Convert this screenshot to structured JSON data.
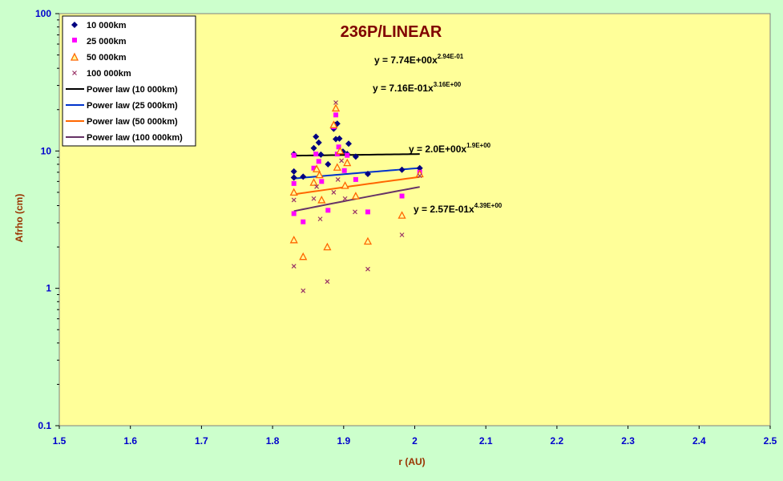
{
  "chart_data": {
    "type": "scatter",
    "title": "236P/LINEAR",
    "xlabel": "r (AU)",
    "ylabel": "Afrho (cm)",
    "xlim": [
      1.5,
      2.5
    ],
    "ylim": [
      0.1,
      100
    ],
    "yscale": "log",
    "x_ticks": [
      "1.5",
      "1.6",
      "1.7",
      "1.8",
      "1.9",
      "2",
      "2.1",
      "2.2",
      "2.3",
      "2.4",
      "2.5"
    ],
    "y_ticks": [
      "0.1",
      "1",
      "10",
      "100"
    ],
    "plot_background": "#ffff99",
    "chart_background": "#ccffcc",
    "grid": false,
    "legend_position": "top-left",
    "series": [
      {
        "name": "10 000km",
        "marker": "diamond",
        "color": "#000080",
        "points": [
          [
            1.83,
            9.5
          ],
          [
            1.83,
            7.1
          ],
          [
            1.83,
            6.4
          ],
          [
            1.843,
            6.5
          ],
          [
            1.858,
            10.5
          ],
          [
            1.861,
            12.7
          ],
          [
            1.865,
            11.5
          ],
          [
            1.868,
            9.4
          ],
          [
            1.878,
            8.0
          ],
          [
            1.886,
            14.5
          ],
          [
            1.888,
            15.5
          ],
          [
            1.889,
            12.2
          ],
          [
            1.891,
            15.8
          ],
          [
            1.894,
            12.3
          ],
          [
            1.899,
            9.9
          ],
          [
            1.905,
            9.5
          ],
          [
            1.907,
            11.3
          ],
          [
            1.917,
            9.1
          ],
          [
            1.934,
            6.8
          ],
          [
            1.982,
            7.3
          ],
          [
            2.007,
            7.5
          ]
        ]
      },
      {
        "name": "25 000km",
        "marker": "square",
        "color": "#ff00ff",
        "points": [
          [
            1.83,
            9.3
          ],
          [
            1.83,
            5.8
          ],
          [
            1.83,
            3.5
          ],
          [
            1.843,
            3.05
          ],
          [
            1.858,
            7.5
          ],
          [
            1.861,
            9.5
          ],
          [
            1.865,
            8.4
          ],
          [
            1.869,
            6.0
          ],
          [
            1.878,
            3.7
          ],
          [
            1.886,
            15.0
          ],
          [
            1.889,
            18.3
          ],
          [
            1.891,
            9.5
          ],
          [
            1.893,
            10.7
          ],
          [
            1.901,
            7.2
          ],
          [
            1.905,
            9.3
          ],
          [
            1.917,
            6.2
          ],
          [
            1.934,
            3.6
          ],
          [
            1.982,
            4.7
          ],
          [
            2.007,
            7.0
          ]
        ]
      },
      {
        "name": "50 000km",
        "marker": "triangle",
        "color": "#ff6600",
        "points": [
          [
            1.83,
            5.0
          ],
          [
            1.83,
            2.25
          ],
          [
            1.843,
            1.7
          ],
          [
            1.858,
            5.9
          ],
          [
            1.862,
            7.4
          ],
          [
            1.866,
            6.7
          ],
          [
            1.869,
            4.4
          ],
          [
            1.877,
            2.0
          ],
          [
            1.886,
            15.5
          ],
          [
            1.889,
            20.5
          ],
          [
            1.891,
            7.6
          ],
          [
            1.895,
            10.0
          ],
          [
            1.902,
            5.6
          ],
          [
            1.905,
            8.2
          ],
          [
            1.917,
            4.7
          ],
          [
            1.934,
            2.2
          ],
          [
            1.982,
            3.4
          ],
          [
            2.007,
            6.8
          ]
        ]
      },
      {
        "name": "100 000km",
        "marker": "x",
        "color": "#993366",
        "points": [
          [
            1.83,
            4.4
          ],
          [
            1.83,
            1.45
          ],
          [
            1.843,
            0.96
          ],
          [
            1.858,
            4.5
          ],
          [
            1.862,
            5.5
          ],
          [
            1.867,
            3.2
          ],
          [
            1.877,
            1.12
          ],
          [
            1.886,
            5.0
          ],
          [
            1.889,
            22.5
          ],
          [
            1.892,
            6.2
          ],
          [
            1.897,
            8.5
          ],
          [
            1.902,
            4.5
          ],
          [
            1.916,
            3.6
          ],
          [
            1.934,
            1.38
          ],
          [
            1.982,
            2.45
          ],
          [
            2.007,
            6.6
          ]
        ]
      }
    ],
    "trendlines": [
      {
        "name": "Power law (10 000km)",
        "color": "#000000",
        "a": 7.74,
        "b": 0.294,
        "xrange": [
          1.83,
          2.007
        ]
      },
      {
        "name": "Power law (25 000km)",
        "color": "#0033cc",
        "a": 2.0,
        "b": 1.9,
        "xrange": [
          1.83,
          2.007
        ]
      },
      {
        "name": "Power law (50 000km)",
        "color": "#ff6600",
        "a": 0.716,
        "b": 3.16,
        "xrange": [
          1.83,
          2.007
        ]
      },
      {
        "name": "Power law (100 000km)",
        "color": "#663366",
        "a": 0.257,
        "b": 4.39,
        "xrange": [
          1.83,
          2.007
        ]
      }
    ],
    "equations": [
      {
        "text": "y = 7.74E+00x",
        "sup": "2.94E-01",
        "color": "#000000"
      },
      {
        "text": "y = 7.16E-01x",
        "sup": "3.16E+00",
        "color": "#ff6600"
      },
      {
        "text": "y = 2.0E+00x",
        "sup": "1.9E+00",
        "color": "#0000cc"
      },
      {
        "text": "y = 2.57E-01x",
        "sup": "4.39E+00",
        "color": "#663366"
      }
    ]
  }
}
